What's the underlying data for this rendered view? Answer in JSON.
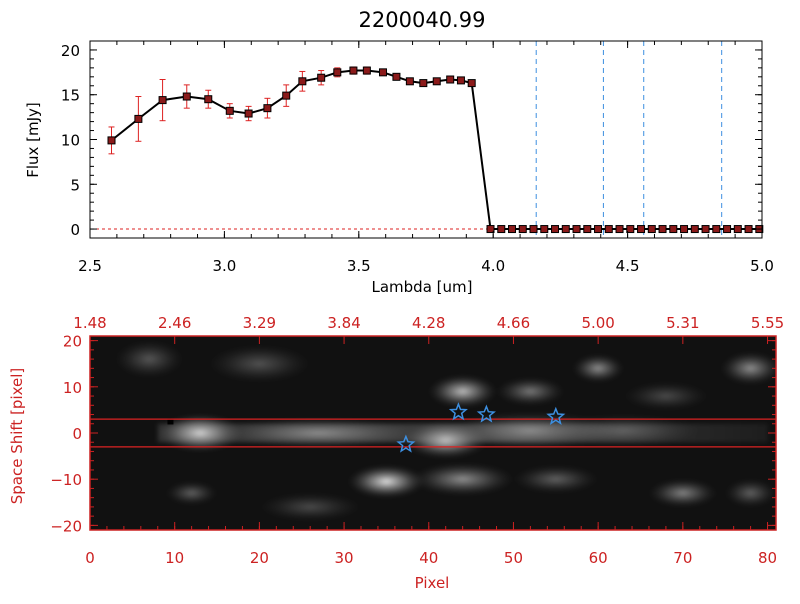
{
  "chart_data": [
    {
      "type": "line",
      "title": "2200040.99",
      "xlabel": "Lambda [um]",
      "ylabel": "Flux [mJy]",
      "xlim": [
        2.5,
        5.0
      ],
      "ylim": [
        -1,
        21
      ],
      "x_ticks": [
        "2.5",
        "3.0",
        "3.5",
        "4.0",
        "4.5",
        "5.0"
      ],
      "x_tick_values": [
        2.5,
        3.0,
        3.5,
        4.0,
        4.5,
        5.0
      ],
      "y_ticks": [
        "0",
        "5",
        "10",
        "15",
        "20"
      ],
      "y_tick_values": [
        0,
        5,
        10,
        15,
        20
      ],
      "series": [
        {
          "name": "Flux",
          "color": "#000000",
          "marker_color": "#8b1a1a",
          "error_color": "#dd2222",
          "x": [
            2.58,
            2.68,
            2.77,
            2.86,
            2.94,
            3.02,
            3.09,
            3.16,
            3.23,
            3.29,
            3.36,
            3.42,
            3.48,
            3.53,
            3.59,
            3.64,
            3.69,
            3.74,
            3.79,
            3.84,
            3.88,
            3.92,
            3.99,
            4.03,
            4.07,
            4.11,
            4.15,
            4.19,
            4.23,
            4.27,
            4.31,
            4.35,
            4.39,
            4.43,
            4.47,
            4.51,
            4.55,
            4.59,
            4.63,
            4.67,
            4.71,
            4.75,
            4.79,
            4.83,
            4.87,
            4.91,
            4.95,
            4.99
          ],
          "y": [
            9.9,
            12.3,
            14.4,
            14.8,
            14.5,
            13.2,
            12.9,
            13.5,
            14.9,
            16.5,
            16.9,
            17.5,
            17.7,
            17.7,
            17.5,
            17.0,
            16.5,
            16.3,
            16.5,
            16.7,
            16.6,
            16.3,
            0,
            0,
            0,
            0,
            0,
            0,
            0,
            0,
            0,
            0,
            0,
            0,
            0,
            0,
            0,
            0,
            0,
            0,
            0,
            0,
            0,
            0,
            0,
            0,
            0,
            0
          ],
          "err": [
            1.5,
            2.5,
            2.3,
            1.3,
            1.0,
            0.8,
            0.8,
            1.1,
            1.2,
            1.1,
            0.8,
            0.5,
            0.4,
            0.4,
            0.3,
            0.3,
            0.3,
            0.3,
            0.3,
            0.3,
            0.3,
            0.3,
            0,
            0,
            0,
            0,
            0,
            0,
            0,
            0,
            0,
            0,
            0,
            0,
            0,
            0,
            0,
            0,
            0,
            0,
            0,
            0,
            0,
            0,
            0,
            0,
            0,
            0
          ]
        }
      ],
      "vlines": [
        4.16,
        4.41,
        4.56,
        4.85
      ],
      "vline_color": "#3d8fe0",
      "hline": {
        "y": 0,
        "color": "#dd2222"
      }
    },
    {
      "type": "heatmap",
      "xlabel": "Pixel",
      "ylabel": "Space Shift [pixel]",
      "xlim": [
        0,
        81
      ],
      "ylim": [
        -21,
        21
      ],
      "x_ticks": [
        "0",
        "10",
        "20",
        "30",
        "40",
        "50",
        "60",
        "70",
        "80"
      ],
      "x_tick_values": [
        0,
        10,
        20,
        30,
        40,
        50,
        60,
        70,
        80
      ],
      "y_ticks": [
        "−20",
        "−10",
        "0",
        "10",
        "20"
      ],
      "y_tick_values": [
        -20,
        -10,
        0,
        10,
        20
      ],
      "top_ticks": [
        "1.48",
        "2.46",
        "3.29",
        "3.84",
        "4.28",
        "4.66",
        "5.00",
        "5.31",
        "5.55"
      ],
      "top_tick_values": [
        0,
        10,
        20,
        30,
        40,
        50,
        60,
        70,
        80
      ],
      "axis_color": "#cc2222",
      "hlines": [
        3,
        -3
      ],
      "hline_color": "#dd2222",
      "stars": [
        {
          "x": 37.3,
          "y": -2.5
        },
        {
          "x": 43.5,
          "y": 4.5
        },
        {
          "x": 46.8,
          "y": 4.0
        },
        {
          "x": 55.0,
          "y": 3.5
        }
      ],
      "star_color": "#3d8fe0",
      "blobs": [
        {
          "x": 13,
          "y": 0,
          "sx": 5,
          "sy": 4,
          "a": 1.0
        },
        {
          "x": 27,
          "y": 0,
          "sx": 12,
          "sy": 3.2,
          "a": 0.55
        },
        {
          "x": 42,
          "y": -1.5,
          "sx": 5,
          "sy": 4,
          "a": 0.85
        },
        {
          "x": 52,
          "y": 0.5,
          "sx": 10,
          "sy": 4,
          "a": 0.5
        },
        {
          "x": 63,
          "y": 0.5,
          "sx": 9,
          "sy": 3.5,
          "a": 0.3
        },
        {
          "x": 35,
          "y": -10.5,
          "sx": 4.5,
          "sy": 3.5,
          "a": 0.9
        },
        {
          "x": 44,
          "y": -10,
          "sx": 6,
          "sy": 3.5,
          "a": 0.55
        },
        {
          "x": 55,
          "y": -10,
          "sx": 5,
          "sy": 3,
          "a": 0.35
        },
        {
          "x": 70,
          "y": -13,
          "sx": 4,
          "sy": 3,
          "a": 0.5
        },
        {
          "x": 78,
          "y": -13,
          "sx": 3,
          "sy": 3,
          "a": 0.35
        },
        {
          "x": 44,
          "y": 9,
          "sx": 4,
          "sy": 3.5,
          "a": 0.75
        },
        {
          "x": 52,
          "y": 9,
          "sx": 4,
          "sy": 3,
          "a": 0.45
        },
        {
          "x": 60,
          "y": 14,
          "sx": 3,
          "sy": 3,
          "a": 0.55
        },
        {
          "x": 78,
          "y": 14,
          "sx": 3.5,
          "sy": 3.5,
          "a": 0.55
        },
        {
          "x": 12,
          "y": -13,
          "sx": 3,
          "sy": 2.5,
          "a": 0.35
        },
        {
          "x": 20,
          "y": 15,
          "sx": 6,
          "sy": 4,
          "a": 0.28
        },
        {
          "x": 7,
          "y": 16,
          "sx": 4,
          "sy": 4,
          "a": 0.3
        },
        {
          "x": 26,
          "y": -16,
          "sx": 6,
          "sy": 3,
          "a": 0.25
        },
        {
          "x": 68,
          "y": 8,
          "sx": 5,
          "sy": 3,
          "a": 0.25
        }
      ]
    }
  ]
}
